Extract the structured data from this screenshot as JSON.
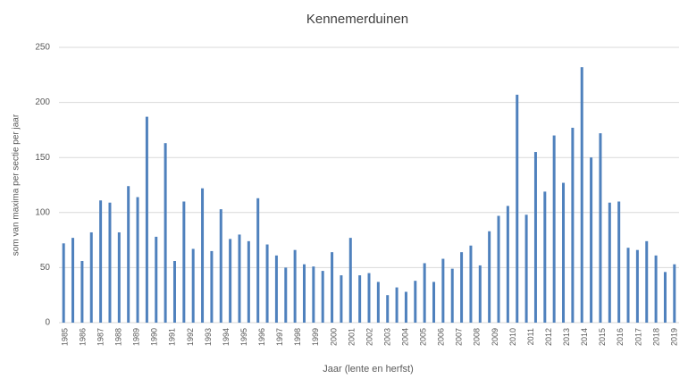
{
  "chart_data": {
    "type": "bar",
    "title": "Kennemerduinen",
    "x_label": "Jaar (lente en herfst)",
    "y_label": "som van maxima per sectie per jaar",
    "x_labels": [
      "1985",
      "1986",
      "1987",
      "1988",
      "1989",
      "1990",
      "1991",
      "1992",
      "1993",
      "1994",
      "1995",
      "1996",
      "1997",
      "1998",
      "1999",
      "2000",
      "2001",
      "2002",
      "2003",
      "2004",
      "2005",
      "2006",
      "2007",
      "2008",
      "2009",
      "2010",
      "2011",
      "2012",
      "2013",
      "2014",
      "2015",
      "2016",
      "2017",
      "2018",
      "2019"
    ],
    "values": [
      72,
      77,
      56,
      82,
      111,
      109,
      82,
      124,
      114,
      187,
      78,
      163,
      56,
      110,
      67,
      122,
      65,
      103,
      76,
      80,
      74,
      113,
      71,
      61,
      50,
      66,
      53,
      51,
      47,
      64,
      43,
      77,
      43,
      45,
      37,
      25,
      32,
      28,
      38,
      54,
      37,
      58,
      49,
      64,
      70,
      52,
      83,
      97,
      106,
      207,
      98,
      155,
      119,
      170,
      127,
      177,
      232,
      150,
      172,
      109,
      110,
      68,
      66,
      74,
      61,
      46,
      53
    ],
    "color": "#4f81bd",
    "ylim": [
      0,
      250
    ],
    "yticks": [
      0,
      50,
      100,
      150,
      200,
      250
    ],
    "grid": true
  }
}
